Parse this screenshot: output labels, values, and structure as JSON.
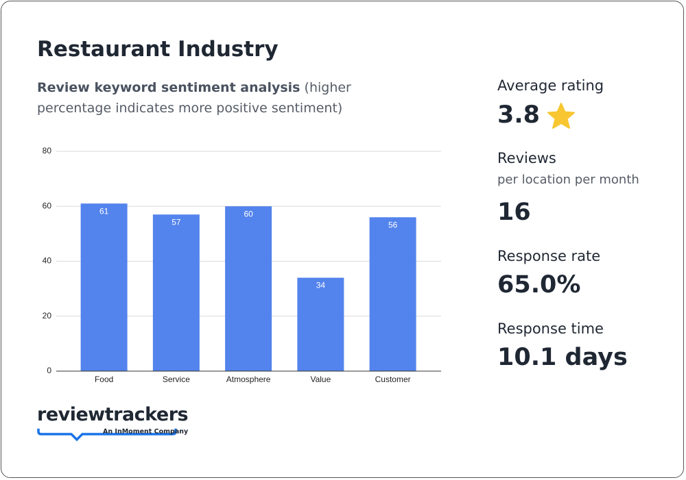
{
  "header": {
    "title": "Restaurant Industry",
    "subtitle_bold": "Review keyword sentiment analysis",
    "subtitle": "(higher percentage indicates more positive sentiment)"
  },
  "chart_data": {
    "type": "bar",
    "categories": [
      "Food",
      "Service",
      "Atmosphere",
      "Value",
      "Customer"
    ],
    "values": [
      61,
      57,
      60,
      34,
      56
    ],
    "color": "#5383ec",
    "ylim": [
      0,
      80
    ],
    "yticks": [
      0,
      20,
      40,
      60,
      80
    ],
    "grid": true
  },
  "stats": [
    {
      "label": "Average rating",
      "value": "3.8"
    },
    {
      "label": "Reviews",
      "sublabel": "per location per month",
      "value": "16"
    },
    {
      "label": "Response rate",
      "value": "65.0%"
    },
    {
      "label": "Response time",
      "value": "10.1 days"
    }
  ],
  "logo": {
    "name": "reviewtrackers",
    "tagline": "An InMoment Company"
  }
}
